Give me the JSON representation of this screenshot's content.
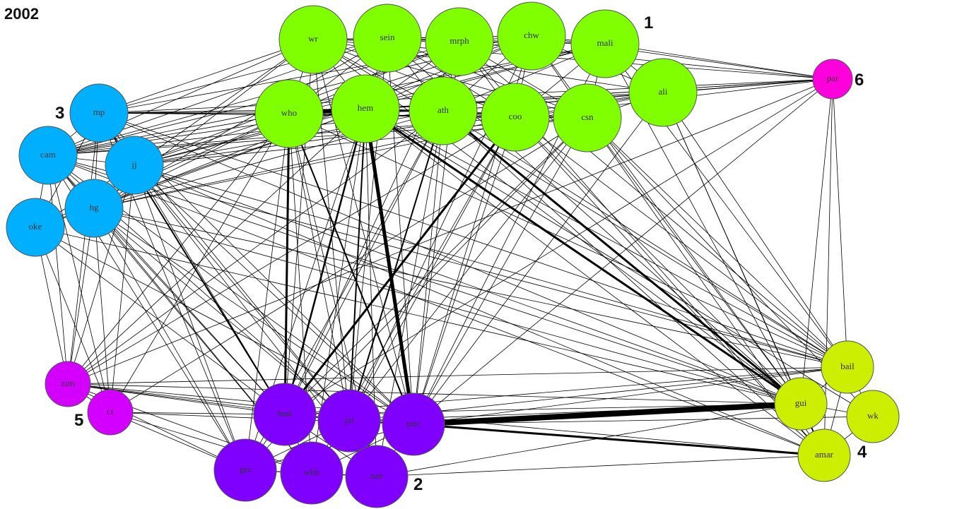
{
  "title": "2002",
  "clusters": [
    {
      "id": "1",
      "label": "1",
      "color": "#7fff00"
    },
    {
      "id": "2",
      "label": "2",
      "color": "#7f00ff"
    },
    {
      "id": "3",
      "label": "3",
      "color": "#00b0ff"
    },
    {
      "id": "4",
      "label": "4",
      "color": "#ccee00"
    },
    {
      "id": "5",
      "label": "5",
      "color": "#d400ff"
    },
    {
      "id": "6",
      "label": "6",
      "color": "#ff00dd"
    }
  ],
  "nodes": [
    {
      "id": "wr",
      "label": "wr",
      "cluster": "1"
    },
    {
      "id": "sein",
      "label": "sein",
      "cluster": "1"
    },
    {
      "id": "mrph",
      "label": "mrph",
      "cluster": "1"
    },
    {
      "id": "chw",
      "label": "chw",
      "cluster": "1"
    },
    {
      "id": "mali",
      "label": "mali",
      "cluster": "1"
    },
    {
      "id": "ali",
      "label": "ali",
      "cluster": "1"
    },
    {
      "id": "who",
      "label": "who",
      "cluster": "1"
    },
    {
      "id": "hem",
      "label": "hem",
      "cluster": "1"
    },
    {
      "id": "ath",
      "label": "ath",
      "cluster": "1"
    },
    {
      "id": "coo",
      "label": "coo",
      "cluster": "1"
    },
    {
      "id": "csn",
      "label": "csn",
      "cluster": "1"
    },
    {
      "id": "mp",
      "label": "mp",
      "cluster": "3"
    },
    {
      "id": "cam",
      "label": "cam",
      "cluster": "3"
    },
    {
      "id": "jj",
      "label": "jj",
      "cluster": "3"
    },
    {
      "id": "hg",
      "label": "hg",
      "cluster": "3"
    },
    {
      "id": "oke",
      "label": "oke",
      "cluster": "3"
    },
    {
      "id": "par",
      "label": "par",
      "cluster": "6"
    },
    {
      "id": "zim",
      "label": "zim",
      "cluster": "5"
    },
    {
      "id": "cr",
      "label": "cr",
      "cluster": "5"
    },
    {
      "id": "hml",
      "label": "hml",
      "cluster": "2"
    },
    {
      "id": "jui",
      "label": "jui",
      "cluster": "2"
    },
    {
      "id": "puc",
      "label": "puc",
      "cluster": "2"
    },
    {
      "id": "ger",
      "label": "ger",
      "cluster": "2"
    },
    {
      "id": "whh",
      "label": "whh",
      "cluster": "2"
    },
    {
      "id": "nav",
      "label": "nav",
      "cluster": "2"
    },
    {
      "id": "bail",
      "label": "bail",
      "cluster": "4"
    },
    {
      "id": "gui",
      "label": "gui",
      "cluster": "4"
    },
    {
      "id": "wk",
      "label": "wk",
      "cluster": "4"
    },
    {
      "id": "amar",
      "label": "amar",
      "cluster": "4"
    }
  ],
  "heavy_edges": [
    {
      "from": "puc",
      "to": "gui",
      "weight": 8
    },
    {
      "from": "hem",
      "to": "puc",
      "weight": 5
    },
    {
      "from": "who",
      "to": "hem",
      "weight": 6
    },
    {
      "from": "hem",
      "to": "gui",
      "weight": 3
    },
    {
      "from": "ath",
      "to": "gui",
      "weight": 3
    },
    {
      "from": "puc",
      "to": "amar",
      "weight": 3
    },
    {
      "from": "who",
      "to": "hml",
      "weight": 3
    },
    {
      "from": "hem",
      "to": "hml",
      "weight": 2.5
    },
    {
      "from": "coo",
      "to": "hml",
      "weight": 3
    },
    {
      "from": "who",
      "to": "puc",
      "weight": 2
    },
    {
      "from": "hem",
      "to": "jui",
      "weight": 2
    },
    {
      "from": "ath",
      "to": "jui",
      "weight": 2
    },
    {
      "from": "hml",
      "to": "mp",
      "weight": 2
    },
    {
      "from": "gui",
      "to": "amar",
      "weight": 2
    }
  ],
  "edges": [
    [
      "wr",
      "sein"
    ],
    [
      "wr",
      "mrph"
    ],
    [
      "wr",
      "chw"
    ],
    [
      "wr",
      "mali"
    ],
    [
      "wr",
      "who"
    ],
    [
      "wr",
      "hem"
    ],
    [
      "wr",
      "ath"
    ],
    [
      "wr",
      "coo"
    ],
    [
      "wr",
      "csn"
    ],
    [
      "wr",
      "mp"
    ],
    [
      "wr",
      "cam"
    ],
    [
      "wr",
      "jj"
    ],
    [
      "wr",
      "hg"
    ],
    [
      "wr",
      "par"
    ],
    [
      "wr",
      "ali"
    ],
    [
      "wr",
      "hml"
    ],
    [
      "wr",
      "jui"
    ],
    [
      "wr",
      "puc"
    ],
    [
      "wr",
      "bail"
    ],
    [
      "wr",
      "gui"
    ],
    [
      "sein",
      "mrph"
    ],
    [
      "sein",
      "chw"
    ],
    [
      "sein",
      "mali"
    ],
    [
      "sein",
      "who"
    ],
    [
      "sein",
      "hem"
    ],
    [
      "sein",
      "ath"
    ],
    [
      "sein",
      "coo"
    ],
    [
      "sein",
      "csn"
    ],
    [
      "sein",
      "cam"
    ],
    [
      "sein",
      "mp"
    ],
    [
      "sein",
      "hg"
    ],
    [
      "sein",
      "puc"
    ],
    [
      "sein",
      "jui"
    ],
    [
      "sein",
      "gui"
    ],
    [
      "mrph",
      "chw"
    ],
    [
      "mrph",
      "mali"
    ],
    [
      "mrph",
      "who"
    ],
    [
      "mrph",
      "hem"
    ],
    [
      "mrph",
      "ath"
    ],
    [
      "mrph",
      "coo"
    ],
    [
      "mrph",
      "csn"
    ],
    [
      "mrph",
      "cam"
    ],
    [
      "mrph",
      "jj"
    ],
    [
      "mrph",
      "par"
    ],
    [
      "mrph",
      "puc"
    ],
    [
      "mrph",
      "hml"
    ],
    [
      "mrph",
      "bail"
    ],
    [
      "mrph",
      "amar"
    ],
    [
      "chw",
      "mali"
    ],
    [
      "chw",
      "who"
    ],
    [
      "chw",
      "hem"
    ],
    [
      "chw",
      "ath"
    ],
    [
      "chw",
      "coo"
    ],
    [
      "chw",
      "csn"
    ],
    [
      "chw",
      "ali"
    ],
    [
      "chw",
      "cam"
    ],
    [
      "chw",
      "mp"
    ],
    [
      "chw",
      "hg"
    ],
    [
      "chw",
      "par"
    ],
    [
      "chw",
      "gui"
    ],
    [
      "chw",
      "puc"
    ],
    [
      "chw",
      "jui"
    ],
    [
      "mali",
      "who"
    ],
    [
      "mali",
      "hem"
    ],
    [
      "mali",
      "ath"
    ],
    [
      "mali",
      "coo"
    ],
    [
      "mali",
      "csn"
    ],
    [
      "mali",
      "ali"
    ],
    [
      "mali",
      "cam"
    ],
    [
      "mali",
      "jj"
    ],
    [
      "mali",
      "par"
    ],
    [
      "mali",
      "bail"
    ],
    [
      "mali",
      "gui"
    ],
    [
      "mali",
      "puc"
    ],
    [
      "ali",
      "who"
    ],
    [
      "ali",
      "hem"
    ],
    [
      "ali",
      "ath"
    ],
    [
      "ali",
      "coo"
    ],
    [
      "ali",
      "csn"
    ],
    [
      "ali",
      "par"
    ],
    [
      "ali",
      "bail"
    ],
    [
      "ali",
      "gui"
    ],
    [
      "ali",
      "amar"
    ],
    [
      "ali",
      "jj"
    ],
    [
      "ali",
      "hg"
    ],
    [
      "ali",
      "puc"
    ],
    [
      "who",
      "hem"
    ],
    [
      "who",
      "ath"
    ],
    [
      "who",
      "coo"
    ],
    [
      "who",
      "csn"
    ],
    [
      "who",
      "mp"
    ],
    [
      "who",
      "cam"
    ],
    [
      "who",
      "jj"
    ],
    [
      "who",
      "hg"
    ],
    [
      "who",
      "oke"
    ],
    [
      "who",
      "zim"
    ],
    [
      "who",
      "cr"
    ],
    [
      "who",
      "jui"
    ],
    [
      "who",
      "ger"
    ],
    [
      "who",
      "whh"
    ],
    [
      "who",
      "nav"
    ],
    [
      "who",
      "bail"
    ],
    [
      "who",
      "par"
    ],
    [
      "hem",
      "ath"
    ],
    [
      "hem",
      "coo"
    ],
    [
      "hem",
      "csn"
    ],
    [
      "hem",
      "mp"
    ],
    [
      "hem",
      "cam"
    ],
    [
      "hem",
      "jj"
    ],
    [
      "hem",
      "hg"
    ],
    [
      "hem",
      "oke"
    ],
    [
      "hem",
      "zim"
    ],
    [
      "hem",
      "ger"
    ],
    [
      "hem",
      "whh"
    ],
    [
      "hem",
      "nav"
    ],
    [
      "hem",
      "bail"
    ],
    [
      "hem",
      "amar"
    ],
    [
      "hem",
      "wk"
    ],
    [
      "hem",
      "par"
    ],
    [
      "ath",
      "coo"
    ],
    [
      "ath",
      "csn"
    ],
    [
      "ath",
      "mp"
    ],
    [
      "ath",
      "cam"
    ],
    [
      "ath",
      "jj"
    ],
    [
      "ath",
      "hg"
    ],
    [
      "ath",
      "hml"
    ],
    [
      "ath",
      "puc"
    ],
    [
      "ath",
      "ger"
    ],
    [
      "ath",
      "nav"
    ],
    [
      "ath",
      "bail"
    ],
    [
      "ath",
      "amar"
    ],
    [
      "ath",
      "zim"
    ],
    [
      "ath",
      "par"
    ],
    [
      "coo",
      "csn"
    ],
    [
      "coo",
      "mp"
    ],
    [
      "coo",
      "cam"
    ],
    [
      "coo",
      "hg"
    ],
    [
      "coo",
      "jui"
    ],
    [
      "coo",
      "puc"
    ],
    [
      "coo",
      "whh"
    ],
    [
      "coo",
      "gui"
    ],
    [
      "coo",
      "bail"
    ],
    [
      "coo",
      "amar"
    ],
    [
      "coo",
      "zim"
    ],
    [
      "coo",
      "par"
    ],
    [
      "csn",
      "mp"
    ],
    [
      "csn",
      "cam"
    ],
    [
      "csn",
      "jj"
    ],
    [
      "csn",
      "hml"
    ],
    [
      "csn",
      "jui"
    ],
    [
      "csn",
      "puc"
    ],
    [
      "csn",
      "ger"
    ],
    [
      "csn",
      "gui"
    ],
    [
      "csn",
      "bail"
    ],
    [
      "csn",
      "wk"
    ],
    [
      "csn",
      "amar"
    ],
    [
      "csn",
      "cr"
    ],
    [
      "mp",
      "cam"
    ],
    [
      "mp",
      "jj"
    ],
    [
      "mp",
      "hg"
    ],
    [
      "mp",
      "oke"
    ],
    [
      "mp",
      "zim"
    ],
    [
      "mp",
      "par"
    ],
    [
      "mp",
      "jui"
    ],
    [
      "mp",
      "puc"
    ],
    [
      "mp",
      "ger"
    ],
    [
      "mp",
      "gui"
    ],
    [
      "mp",
      "bail"
    ],
    [
      "cam",
      "jj"
    ],
    [
      "cam",
      "hg"
    ],
    [
      "cam",
      "oke"
    ],
    [
      "cam",
      "zim"
    ],
    [
      "cam",
      "cr"
    ],
    [
      "cam",
      "hml"
    ],
    [
      "cam",
      "jui"
    ],
    [
      "cam",
      "puc"
    ],
    [
      "cam",
      "ger"
    ],
    [
      "cam",
      "whh"
    ],
    [
      "cam",
      "gui"
    ],
    [
      "cam",
      "bail"
    ],
    [
      "cam",
      "amar"
    ],
    [
      "jj",
      "hg"
    ],
    [
      "jj",
      "oke"
    ],
    [
      "jj",
      "zim"
    ],
    [
      "jj",
      "cr"
    ],
    [
      "jj",
      "hml"
    ],
    [
      "jj",
      "jui"
    ],
    [
      "jj",
      "puc"
    ],
    [
      "jj",
      "ger"
    ],
    [
      "jj",
      "nav"
    ],
    [
      "jj",
      "gui"
    ],
    [
      "jj",
      "bail"
    ],
    [
      "jj",
      "amar"
    ],
    [
      "hg",
      "oke"
    ],
    [
      "hg",
      "zim"
    ],
    [
      "hg",
      "cr"
    ],
    [
      "hg",
      "hml"
    ],
    [
      "hg",
      "jui"
    ],
    [
      "hg",
      "puc"
    ],
    [
      "hg",
      "ger"
    ],
    [
      "hg",
      "whh"
    ],
    [
      "hg",
      "gui"
    ],
    [
      "hg",
      "bail"
    ],
    [
      "oke",
      "zim"
    ],
    [
      "oke",
      "cr"
    ],
    [
      "oke",
      "hml"
    ],
    [
      "oke",
      "puc"
    ],
    [
      "oke",
      "gui"
    ],
    [
      "par",
      "bail"
    ],
    [
      "par",
      "gui"
    ],
    [
      "par",
      "amar"
    ],
    [
      "par",
      "puc"
    ],
    [
      "par",
      "hml"
    ],
    [
      "par",
      "zim"
    ],
    [
      "zim",
      "cr"
    ],
    [
      "zim",
      "hml"
    ],
    [
      "zim",
      "jui"
    ],
    [
      "zim",
      "puc"
    ],
    [
      "zim",
      "ger"
    ],
    [
      "zim",
      "whh"
    ],
    [
      "zim",
      "gui"
    ],
    [
      "zim",
      "bail"
    ],
    [
      "zim",
      "amar"
    ],
    [
      "cr",
      "hml"
    ],
    [
      "cr",
      "ger"
    ],
    [
      "cr",
      "whh"
    ],
    [
      "cr",
      "puc"
    ],
    [
      "hml",
      "jui"
    ],
    [
      "hml",
      "puc"
    ],
    [
      "hml",
      "ger"
    ],
    [
      "hml",
      "whh"
    ],
    [
      "hml",
      "nav"
    ],
    [
      "hml",
      "gui"
    ],
    [
      "hml",
      "bail"
    ],
    [
      "jui",
      "puc"
    ],
    [
      "jui",
      "ger"
    ],
    [
      "jui",
      "whh"
    ],
    [
      "jui",
      "nav"
    ],
    [
      "jui",
      "gui"
    ],
    [
      "jui",
      "bail"
    ],
    [
      "puc",
      "ger"
    ],
    [
      "puc",
      "whh"
    ],
    [
      "puc",
      "nav"
    ],
    [
      "puc",
      "bail"
    ],
    [
      "puc",
      "wk"
    ],
    [
      "ger",
      "whh"
    ],
    [
      "ger",
      "nav"
    ],
    [
      "whh",
      "nav"
    ],
    [
      "nav",
      "gui"
    ],
    [
      "nav",
      "amar"
    ],
    [
      "bail",
      "gui"
    ],
    [
      "bail",
      "wk"
    ],
    [
      "bail",
      "amar"
    ],
    [
      "gui",
      "wk"
    ],
    [
      "wk",
      "amar"
    ]
  ]
}
